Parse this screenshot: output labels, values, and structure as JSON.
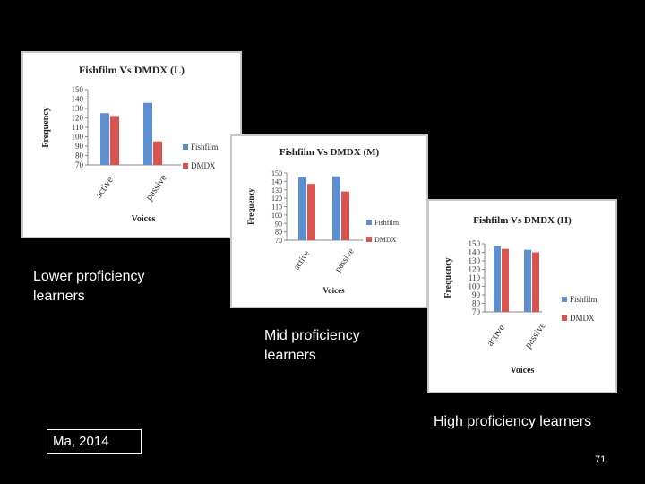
{
  "captions": {
    "low": "Lower proficiency\nlearners",
    "mid": "Mid proficiency\nlearners",
    "high": "High proficiency learners"
  },
  "citation": "Ma, 2014",
  "page_number": "71",
  "colors": {
    "fishfilm": "#5b8fd0",
    "dmdx": "#d9534f"
  },
  "chart_data": [
    {
      "type": "bar",
      "title": "Fishfilm Vs DMDX (L)",
      "xlabel": "Voices",
      "ylabel": "Frequency",
      "categories": [
        "active",
        "passive"
      ],
      "ylim": [
        70,
        150
      ],
      "yticks": [
        70,
        80,
        90,
        100,
        110,
        120,
        130,
        140,
        150
      ],
      "series": [
        {
          "name": "Fishfilm",
          "values": [
            125,
            136
          ]
        },
        {
          "name": "DMDX",
          "values": [
            122,
            95
          ]
        }
      ],
      "legend": "right"
    },
    {
      "type": "bar",
      "title": "Fishfilm Vs DMDX (M)",
      "xlabel": "Voices",
      "ylabel": "Frequency",
      "categories": [
        "active",
        "passive"
      ],
      "ylim": [
        70,
        150
      ],
      "yticks": [
        70,
        80,
        90,
        100,
        110,
        120,
        130,
        140,
        150
      ],
      "series": [
        {
          "name": "Fishfilm",
          "values": [
            145,
            146
          ]
        },
        {
          "name": "DMDX",
          "values": [
            137,
            128
          ]
        }
      ],
      "legend": "right"
    },
    {
      "type": "bar",
      "title": "Fishfilm Vs DMDX (H)",
      "xlabel": "Voices",
      "ylabel": "Frequency",
      "categories": [
        "active",
        "passive"
      ],
      "ylim": [
        70,
        150
      ],
      "yticks": [
        70,
        80,
        90,
        100,
        110,
        120,
        130,
        140,
        150
      ],
      "series": [
        {
          "name": "Fishfilm",
          "values": [
            147,
            143
          ]
        },
        {
          "name": "DMDX",
          "values": [
            144,
            140
          ]
        }
      ],
      "legend": "right"
    }
  ]
}
